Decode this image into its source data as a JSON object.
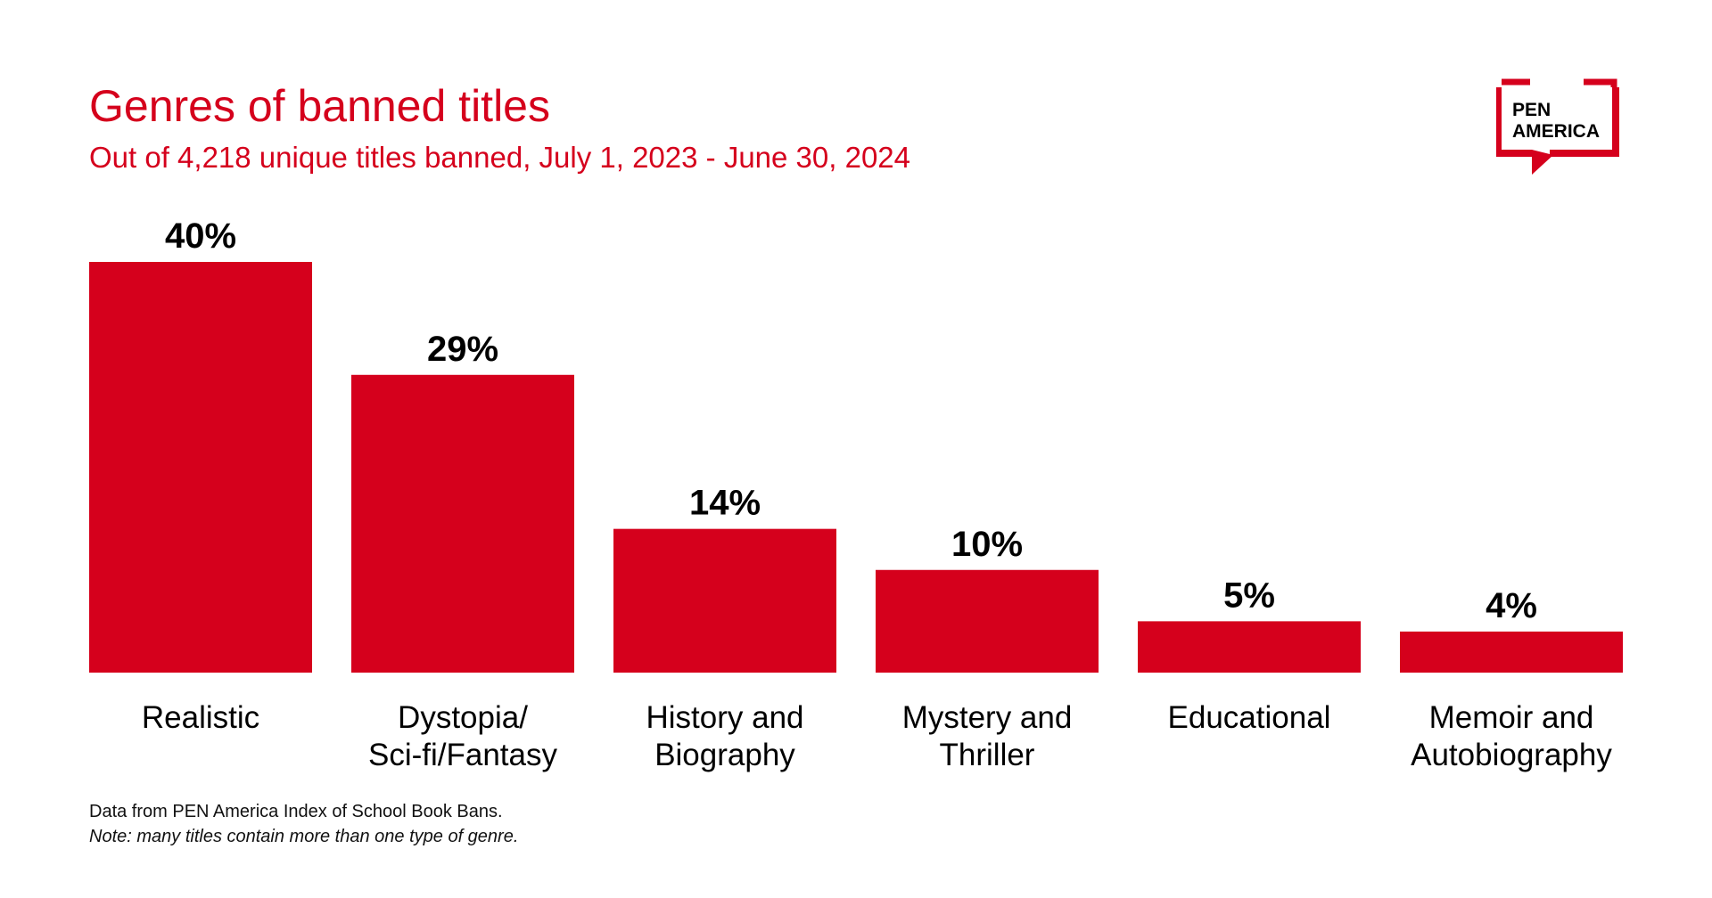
{
  "header": {
    "title": "Genres of banned titles",
    "subtitle": "Out of 4,218 unique titles banned, July 1, 2023 - June 30, 2024"
  },
  "logo": {
    "line1": "PEN",
    "line2": "AMERICA"
  },
  "footnotes": {
    "source": "Data from PEN America Index of School Book Bans.",
    "note": "Note: many titles contain more than one type of genre."
  },
  "colors": {
    "bar": "#d5001c",
    "title": "#d5001c",
    "labels": "#000000"
  },
  "chart_data": {
    "type": "bar",
    "title": "Genres of banned titles",
    "subtitle": "Out of 4,218 unique titles banned, July 1, 2023 - June 30, 2024",
    "categories": [
      [
        "Realistic"
      ],
      [
        "Dystopia/",
        "Sci-fi/Fantasy"
      ],
      [
        "History and",
        "Biography"
      ],
      [
        "Mystery and",
        "Thriller"
      ],
      [
        "Educational"
      ],
      [
        "Memoir and",
        "Autobiography"
      ]
    ],
    "values": [
      40,
      29,
      14,
      10,
      5,
      4
    ],
    "data_labels": [
      "40%",
      "29%",
      "14%",
      "10%",
      "5%",
      "4%"
    ],
    "unit": "%",
    "ylim": [
      0,
      40
    ],
    "grid": false,
    "legend": "none"
  }
}
